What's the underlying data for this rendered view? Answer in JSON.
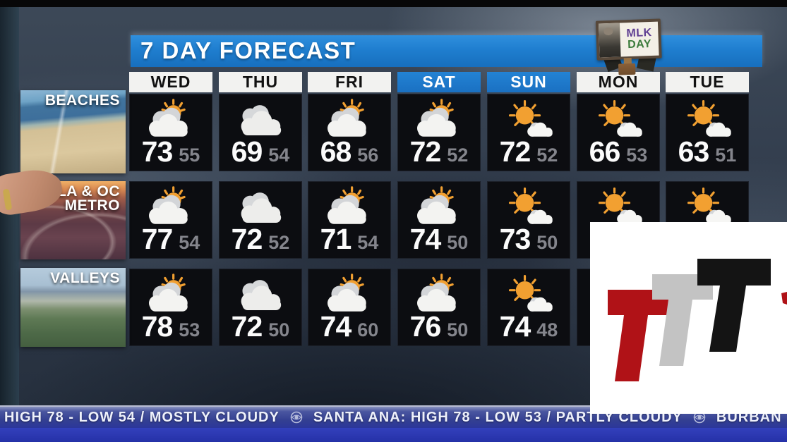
{
  "header": {
    "title": "7 DAY FORECAST"
  },
  "mlk_badge": {
    "line1": "MLK",
    "line2": "DAY"
  },
  "colors": {
    "title_blue": "#1f7ecf",
    "weekend_header_blue": "#1e7ccc",
    "cell_background": "#0c0d11",
    "high_temp_white": "#fbfbfb",
    "low_temp_gray": "#84858c",
    "sun_orange": "#f2a031",
    "ticker_blue": "#333f92",
    "logo_red": "#b01217",
    "logo_silver": "#c3c3c3",
    "logo_black": "#141414"
  },
  "forecast": {
    "days": [
      {
        "label": "WED",
        "weekend": false
      },
      {
        "label": "THU",
        "weekend": false
      },
      {
        "label": "FRI",
        "weekend": false
      },
      {
        "label": "SAT",
        "weekend": true
      },
      {
        "label": "SUN",
        "weekend": true
      },
      {
        "label": "MON",
        "weekend": false
      },
      {
        "label": "TUE",
        "weekend": false
      }
    ],
    "regions": [
      {
        "label": "BEACHES",
        "lines": [
          "BEACHES"
        ],
        "photo": "beach-aerial",
        "cells": [
          {
            "icon": "partly-cloudy",
            "high": "73",
            "low": "55"
          },
          {
            "icon": "cloudy",
            "high": "69",
            "low": "54"
          },
          {
            "icon": "partly-cloudy",
            "high": "68",
            "low": "56"
          },
          {
            "icon": "partly-cloudy",
            "high": "72",
            "low": "52"
          },
          {
            "icon": "mostly-sunny",
            "high": "72",
            "low": "52"
          },
          {
            "icon": "mostly-sunny",
            "high": "66",
            "low": "53"
          },
          {
            "icon": "mostly-sunny",
            "high": "63",
            "low": "51"
          }
        ]
      },
      {
        "label": "LA & OC METRO",
        "lines": [
          "LA & OC",
          "METRO"
        ],
        "photo": "freeway-sunset",
        "cells": [
          {
            "icon": "partly-cloudy",
            "high": "77",
            "low": "54"
          },
          {
            "icon": "cloudy",
            "high": "72",
            "low": "52"
          },
          {
            "icon": "partly-cloudy",
            "high": "71",
            "low": "54"
          },
          {
            "icon": "partly-cloudy",
            "high": "74",
            "low": "50"
          },
          {
            "icon": "mostly-sunny",
            "high": "73",
            "low": "50"
          },
          {
            "icon": "mostly-sunny",
            "high": null,
            "low": null
          },
          {
            "icon": "mostly-sunny",
            "high": null,
            "low": null
          }
        ]
      },
      {
        "label": "VALLEYS",
        "lines": [
          "VALLEYS"
        ],
        "photo": "valley-aerial",
        "cells": [
          {
            "icon": "partly-cloudy",
            "high": "78",
            "low": "53"
          },
          {
            "icon": "cloudy",
            "high": "72",
            "low": "50"
          },
          {
            "icon": "partly-cloudy",
            "high": "74",
            "low": "60"
          },
          {
            "icon": "partly-cloudy",
            "high": "76",
            "low": "50"
          },
          {
            "icon": "mostly-sunny",
            "high": "74",
            "low": "48"
          },
          {
            "icon": null,
            "high": null,
            "low": null
          },
          {
            "icon": null,
            "high": null,
            "low": null
          }
        ]
      }
    ]
  },
  "ticker": {
    "separator_icon": "cbs-eye-icon",
    "items": [
      "HIGH 78 - LOW 54 / MOSTLY CLOUDY",
      "SANTA ANA: HIGH 78 - LOW 53 / PARTLY CLOUDY",
      "BURBAN"
    ]
  },
  "chart_data": {
    "type": "table",
    "title": "7 DAY FORECAST",
    "columns": [
      "WED",
      "THU",
      "FRI",
      "SAT",
      "SUN",
      "MON",
      "TUE"
    ],
    "rows": [
      {
        "region": "BEACHES",
        "high": [
          73,
          69,
          68,
          72,
          72,
          66,
          63
        ],
        "low": [
          55,
          54,
          56,
          52,
          52,
          53,
          51
        ],
        "conditions": [
          "partly-cloudy",
          "cloudy",
          "partly-cloudy",
          "partly-cloudy",
          "mostly-sunny",
          "mostly-sunny",
          "mostly-sunny"
        ]
      },
      {
        "region": "LA & OC METRO",
        "high": [
          77,
          72,
          71,
          74,
          73,
          null,
          null
        ],
        "low": [
          54,
          52,
          54,
          50,
          50,
          null,
          null
        ],
        "conditions": [
          "partly-cloudy",
          "cloudy",
          "partly-cloudy",
          "partly-cloudy",
          "mostly-sunny",
          "mostly-sunny",
          "mostly-sunny"
        ]
      },
      {
        "region": "VALLEYS",
        "high": [
          78,
          72,
          74,
          76,
          74,
          null,
          null
        ],
        "low": [
          53,
          50,
          60,
          50,
          48,
          null,
          null
        ],
        "conditions": [
          "partly-cloudy",
          "cloudy",
          "partly-cloudy",
          "partly-cloudy",
          "mostly-sunny",
          null,
          null
        ]
      }
    ]
  }
}
